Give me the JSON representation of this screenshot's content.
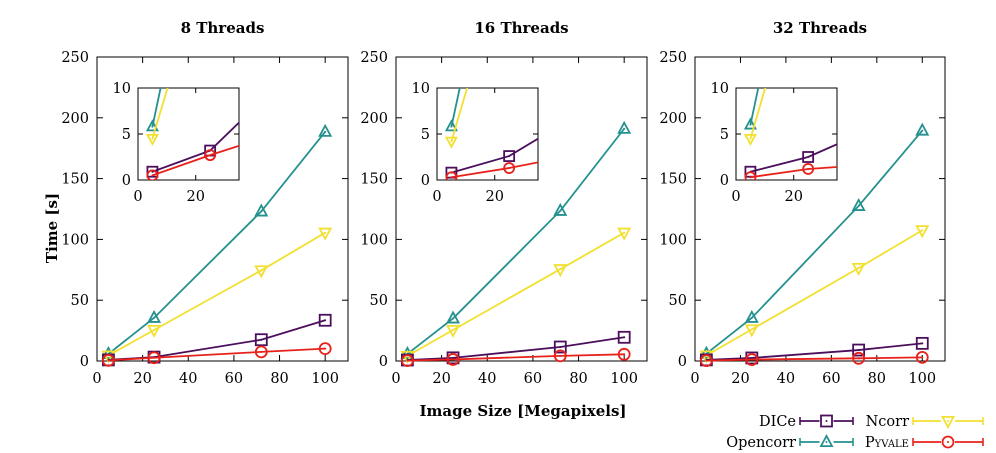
{
  "chart_data": [
    {
      "type": "line",
      "title": "8 Threads",
      "xlabel": "",
      "ylabel": "Time [s]",
      "xlim": [
        0,
        110
      ],
      "ylim": [
        0,
        250
      ],
      "xticks": [
        "0",
        "20",
        "40",
        "60",
        "80",
        "100"
      ],
      "yticks": [
        "0",
        "50",
        "100",
        "150",
        "200",
        "250"
      ],
      "grid": false,
      "series": [
        {
          "name": "DICe",
          "x": [
            5,
            25,
            72,
            100
          ],
          "y": [
            0.9,
            3.2,
            17.5,
            33.5
          ]
        },
        {
          "name": "Ncorr",
          "x": [
            5,
            25,
            72,
            100
          ],
          "y": [
            4.5,
            25.5,
            74.5,
            105.5
          ]
        },
        {
          "name": "Opencorr",
          "x": [
            5,
            25,
            72,
            100
          ],
          "y": [
            5.8,
            35.5,
            123,
            188.5
          ]
        },
        {
          "name": "Pyvale",
          "x": [
            5,
            25,
            72,
            100
          ],
          "y": [
            0.5,
            2.7,
            7.5,
            10.2
          ]
        }
      ],
      "inset": {
        "xlim": [
          0,
          35
        ],
        "ylim": [
          0,
          10
        ],
        "xticks": [
          "0",
          "20"
        ],
        "yticks": [
          "0",
          "5",
          "10"
        ]
      }
    },
    {
      "type": "line",
      "title": "16 Threads",
      "xlabel": "Image Size [Megapixels]",
      "ylabel": "",
      "xlim": [
        0,
        110
      ],
      "ylim": [
        0,
        250
      ],
      "xticks": [
        "0",
        "20",
        "40",
        "60",
        "80",
        "100"
      ],
      "yticks": [
        "0",
        "50",
        "100",
        "150",
        "200",
        "250"
      ],
      "grid": false,
      "series": [
        {
          "name": "DICe",
          "x": [
            5,
            25,
            72,
            100
          ],
          "y": [
            0.8,
            2.6,
            11.5,
            19.5
          ]
        },
        {
          "name": "Ncorr",
          "x": [
            5,
            25,
            72,
            100
          ],
          "y": [
            4.2,
            25.5,
            75.5,
            105.5
          ]
        },
        {
          "name": "Opencorr",
          "x": [
            5,
            25,
            72,
            100
          ],
          "y": [
            5.8,
            35,
            123.5,
            191
          ]
        },
        {
          "name": "Pyvale",
          "x": [
            5,
            25,
            72,
            100
          ],
          "y": [
            0.3,
            1.3,
            4.2,
            5.5
          ]
        }
      ],
      "inset": {
        "xlim": [
          0,
          35
        ],
        "ylim": [
          0,
          10
        ],
        "xticks": [
          "0",
          "20"
        ],
        "yticks": [
          "0",
          "5",
          "10"
        ]
      }
    },
    {
      "type": "line",
      "title": "32 Threads",
      "xlabel": "",
      "ylabel": "",
      "xlim": [
        0,
        110
      ],
      "ylim": [
        0,
        250
      ],
      "xticks": [
        "0",
        "20",
        "40",
        "60",
        "80",
        "100"
      ],
      "yticks": [
        "0",
        "50",
        "100",
        "150",
        "200",
        "250"
      ],
      "grid": false,
      "series": [
        {
          "name": "DICe",
          "x": [
            5,
            25,
            72,
            100
          ],
          "y": [
            0.9,
            2.5,
            9.0,
            14.5
          ]
        },
        {
          "name": "Ncorr",
          "x": [
            5,
            25,
            72,
            100
          ],
          "y": [
            4.5,
            26,
            76.5,
            107.5
          ]
        },
        {
          "name": "Opencorr",
          "x": [
            5,
            25,
            72,
            100
          ],
          "y": [
            6.0,
            35.5,
            127.5,
            189.5
          ]
        },
        {
          "name": "Pyvale",
          "x": [
            5,
            25,
            72,
            100
          ],
          "y": [
            0.3,
            1.2,
            2.2,
            3.0
          ]
        }
      ],
      "inset": {
        "xlim": [
          0,
          35
        ],
        "ylim": [
          0,
          10
        ],
        "xticks": [
          "0",
          "20"
        ],
        "yticks": [
          "0",
          "5",
          "10"
        ]
      }
    }
  ],
  "legend": [
    {
      "label": "DICe",
      "color": "#4b0f5c",
      "marker": "square"
    },
    {
      "label": "Ncorr",
      "color": "#f2e030",
      "marker": "triangle-down"
    },
    {
      "label": "Opencorr",
      "color": "#24918e",
      "marker": "triangle-up"
    },
    {
      "label": "Pyvale",
      "color": "#e8221a",
      "marker": "circle"
    }
  ],
  "legend_placement": "bottom-right",
  "colors": {
    "DICe": "#4b0f5c",
    "Ncorr": "#f2e030",
    "Opencorr": "#24918e",
    "Pyvale": "#e8221a"
  }
}
